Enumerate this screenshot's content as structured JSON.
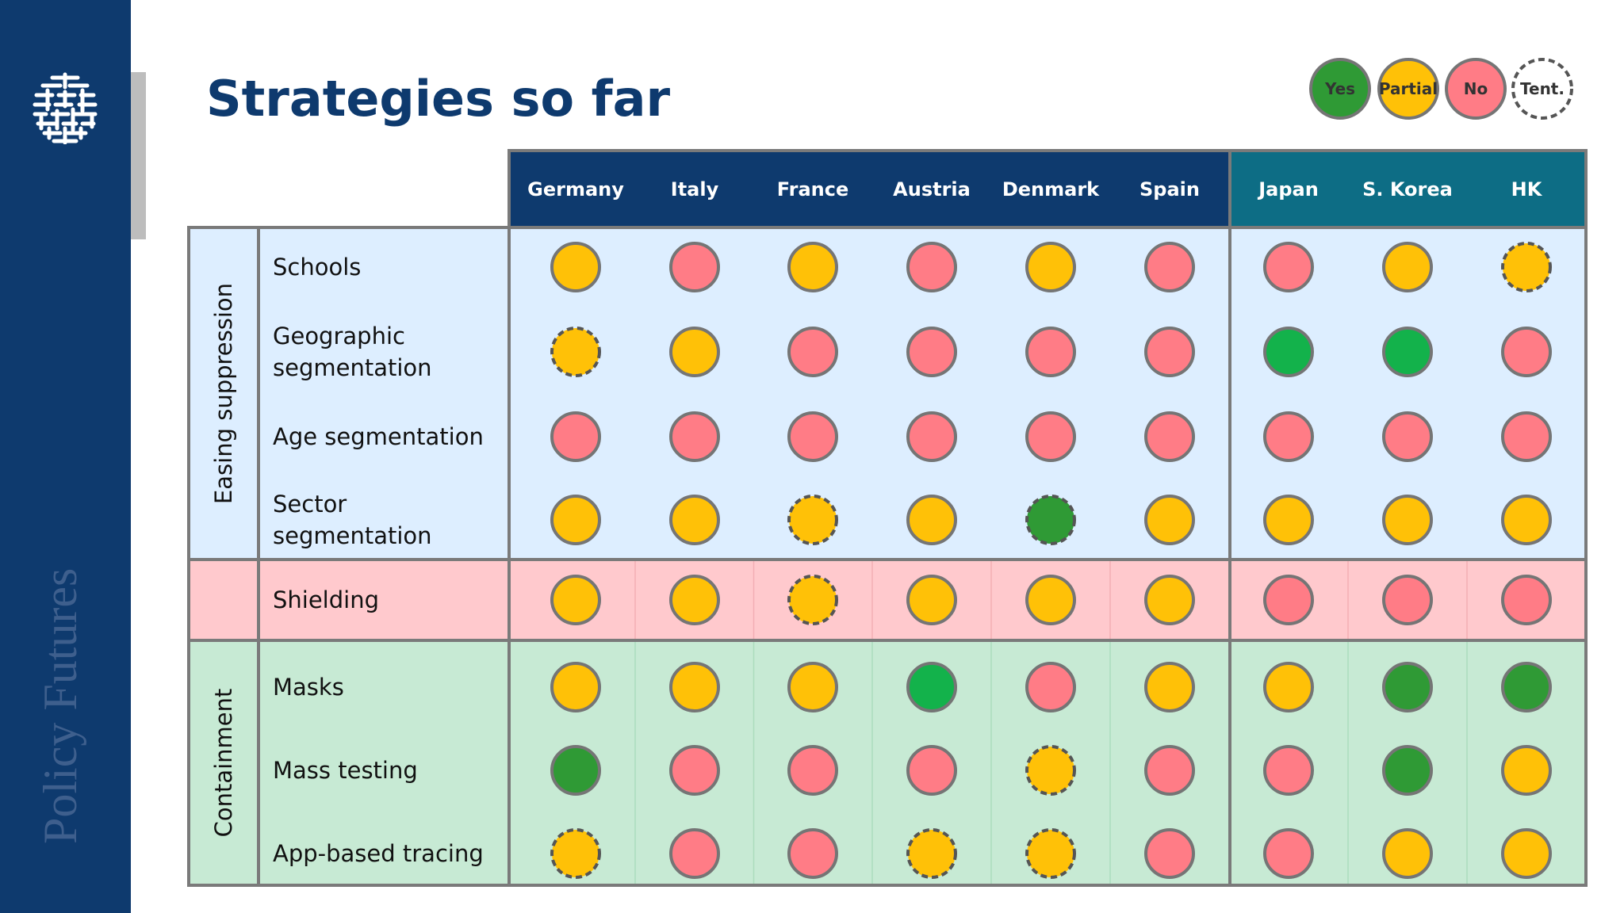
{
  "slide": {
    "title": "Strategies so far",
    "brand": "Policy Futures"
  },
  "legend": [
    {
      "key": "yes",
      "label": "Yes"
    },
    {
      "key": "partial",
      "label": "Partial"
    },
    {
      "key": "no",
      "label": "No"
    },
    {
      "key": "tent",
      "label": "Tent."
    }
  ],
  "colors": {
    "yes": "#2f9a35",
    "yes_bright": "#13b24b",
    "partial": "#ffc107",
    "no": "#ff7c86",
    "tent_fill": "#ffffff",
    "border": "#757575",
    "header_europe": "#0e3a6e",
    "header_asia": "#0d6d85",
    "easing_bg": "#ddeeff",
    "shielding_bg": "#ffc9cd",
    "containment_bg": "#c7ead4",
    "grid": "#7a7a7a"
  },
  "columns": [
    "Germany",
    "Italy",
    "France",
    "Austria",
    "Denmark",
    "Spain",
    "Japan",
    "S. Korea",
    "HK"
  ],
  "groups": [
    {
      "key": "easing",
      "label": "Easing suppression",
      "rows": [
        "Schools",
        "Geographic segmentation",
        "Age segmentation",
        "Sector segmentation"
      ]
    },
    {
      "key": "shielding",
      "label": "",
      "rows": [
        "Shielding"
      ]
    },
    {
      "key": "containment",
      "label": "Containment",
      "rows": [
        "Masks",
        "Mass testing",
        "App-based tracing"
      ]
    }
  ],
  "grid": [
    [
      "partial",
      "no",
      "partial",
      "no",
      "partial",
      "no",
      "no",
      "partial",
      "partial-tent"
    ],
    [
      "partial-tent",
      "partial",
      "no",
      "no",
      "no",
      "no",
      "yes-bright",
      "yes-bright",
      "no"
    ],
    [
      "no",
      "no",
      "no",
      "no",
      "no",
      "no",
      "no",
      "no",
      "no"
    ],
    [
      "partial",
      "partial",
      "partial-tent",
      "partial",
      "yes-tent",
      "partial",
      "partial",
      "partial",
      "partial"
    ],
    [
      "partial",
      "partial",
      "partial-tent",
      "partial",
      "partial",
      "partial",
      "no",
      "no",
      "no"
    ],
    [
      "partial",
      "partial",
      "partial",
      "yes-bright",
      "no",
      "partial",
      "partial",
      "yes",
      "yes"
    ],
    [
      "yes",
      "no",
      "no",
      "no",
      "partial-tent",
      "no",
      "no",
      "yes",
      "partial"
    ],
    [
      "partial-tent",
      "no",
      "no",
      "partial-tent",
      "partial-tent",
      "no",
      "no",
      "partial",
      "partial"
    ]
  ]
}
